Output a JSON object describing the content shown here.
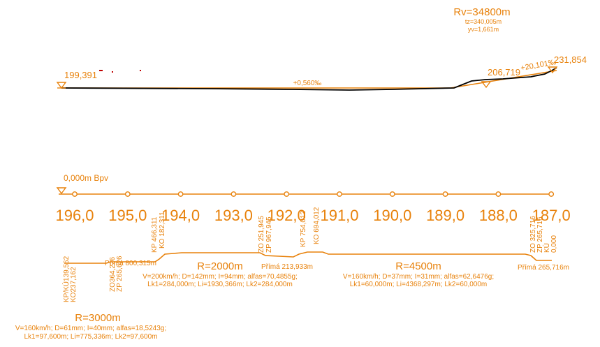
{
  "colors": {
    "accent": "#e8820c",
    "profile": "#000000",
    "marker": "#c00000"
  },
  "vertical_curve": {
    "radius": "Rv=34800m",
    "tangent": "tz=340,005m",
    "ordinate": "yv=1,661m"
  },
  "profile": {
    "elev_left": "199,391",
    "grade_main": "+0,560‰",
    "elev_mid": "206,719",
    "grade_right": "+20,101‰",
    "elev_right": "231,854"
  },
  "stationing": {
    "start_label": "0,000m Bpv",
    "km_labels": [
      "196,0",
      "195,0",
      "194,0",
      "193,0",
      "192,0",
      "191,0",
      "190,0",
      "189,0",
      "188,0",
      "187,0"
    ]
  },
  "points": {
    "kpku": "KP/KÚ139,562",
    "ko_left": "KO237,162",
    "zo_left": "ZO364,226",
    "zp_left": "ZP 265,626",
    "kp_l2": "KP 466,311",
    "ko_l2": "KO 182,311",
    "zo_mid": "ZO 251,945",
    "zp_mid": "ZP 967,945",
    "kp_mid": "KP 754,012",
    "ko_mid": "KO 694,012",
    "zo_right": "ZO 325,716",
    "zp_right": "ZP 265,716",
    "ku_right": "KÚ",
    "zero_right": "0,000"
  },
  "straights": {
    "p1": "Přímá 800,315m",
    "p2": "Přímá 213,933m",
    "p3": "Přímá 265,716m"
  },
  "curves": [
    {
      "radius": "R=3000m",
      "line1": "V=160km/h; D=61mm; I=40mm; alfas=18,5243g;",
      "line2": "Lk1=97,600m; Li=775,336m; Lk2=97,600m"
    },
    {
      "radius": "R=2000m",
      "line1": "V=200km/h; D=142mm; I=94mm; alfas=70,4855g;",
      "line2": "Lk1=284,000m; Li=1930,366m; Lk2=284,000m"
    },
    {
      "radius": "R=4500m",
      "line1": "V=160km/h; D=37mm; I=31mm; alfas=62,6476g;",
      "line2": "Lk1=60,000m; Li=4368,297m; Lk2=60,000m"
    }
  ]
}
